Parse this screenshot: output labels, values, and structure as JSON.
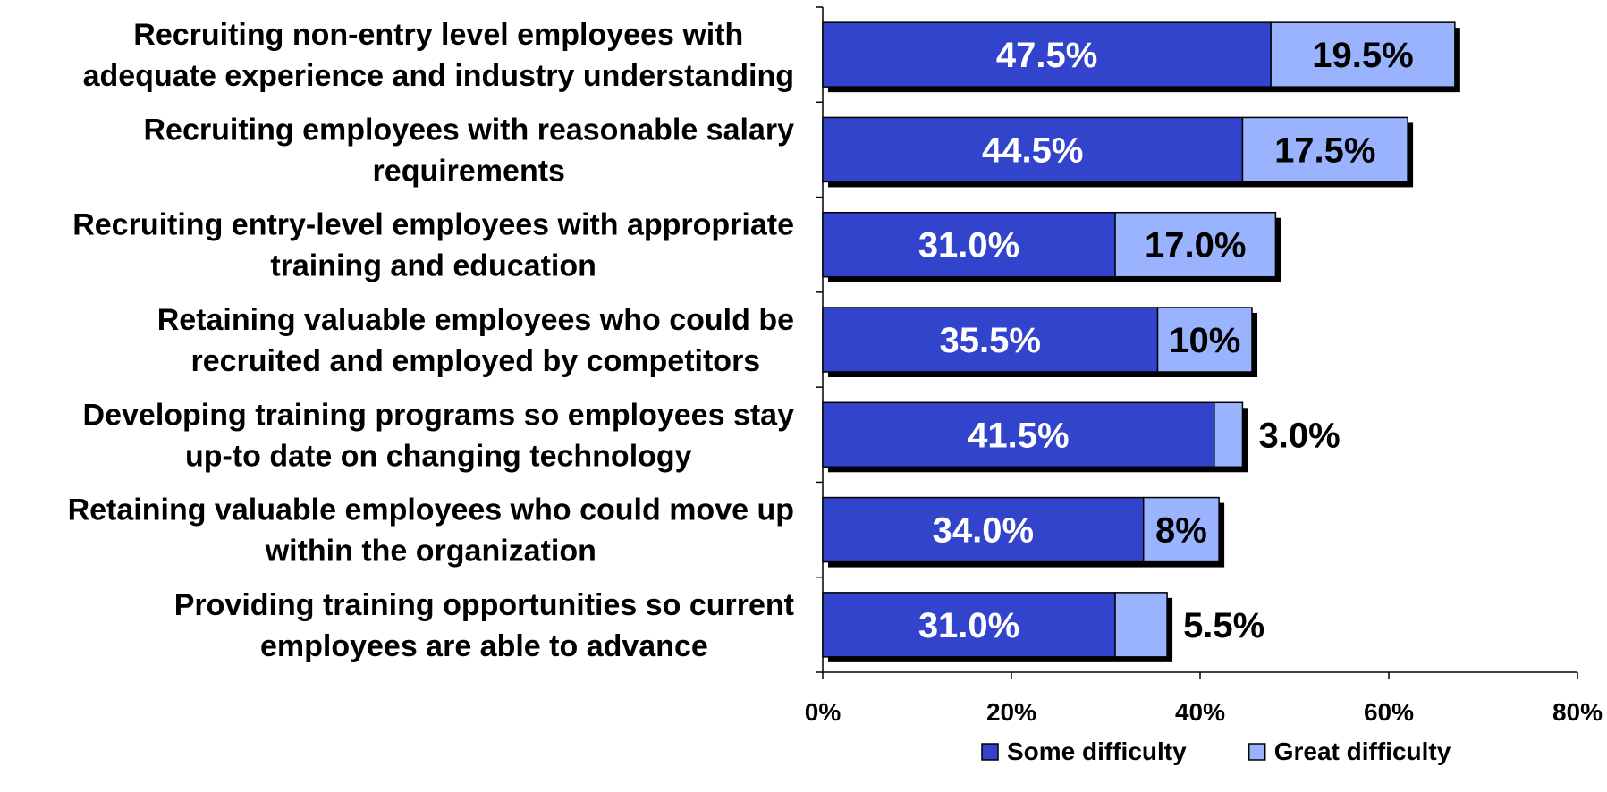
{
  "chart_data": {
    "type": "bar",
    "orientation": "horizontal",
    "stacked": true,
    "categories": [
      [
        "Recruiting non-entry level employees with",
        "adequate experience and industry understanding"
      ],
      [
        "Recruiting employees with reasonable salary",
        "requirements"
      ],
      [
        "Recruiting entry-level employees with appropriate",
        "training and education"
      ],
      [
        "Retaining valuable employees who could be",
        "recruited and employed by competitors"
      ],
      [
        "Developing training programs so employees stay",
        "up-to date on changing technology"
      ],
      [
        "Retaining valuable employees who could move up",
        "within the organization"
      ],
      [
        "Providing training opportunities so current",
        "employees are able to advance"
      ]
    ],
    "series": [
      {
        "name": "Some difficulty",
        "color": "#3344cc",
        "values": [
          47.5,
          44.5,
          31.0,
          35.5,
          41.5,
          34.0,
          31.0
        ],
        "labels": [
          "47.5%",
          "44.5%",
          "31.0%",
          "35.5%",
          "41.5%",
          "34.0%",
          "31.0%"
        ]
      },
      {
        "name": "Great difficulty",
        "color": "#99b3ff",
        "values": [
          19.5,
          17.5,
          17.0,
          10.0,
          3.0,
          8.0,
          5.5
        ],
        "labels": [
          "19.5%",
          "17.5%",
          "17.0%",
          "10%",
          "3.0%",
          "8%",
          "5.5%"
        ]
      }
    ],
    "xlim": [
      0,
      80
    ],
    "xticks": [
      "0%",
      "20%",
      "40%",
      "60%",
      "80%"
    ],
    "xtick_values": [
      0,
      20,
      40,
      60,
      80
    ],
    "legend_position": "bottom",
    "grid": false
  }
}
